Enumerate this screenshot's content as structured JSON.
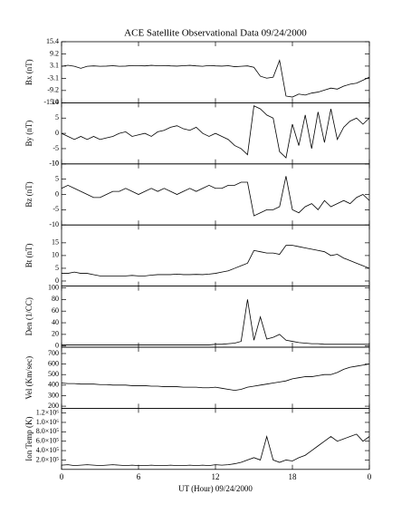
{
  "title": "ACE Satellite Observational Data   09/24/2000",
  "x_axis": {
    "label": "UT (Hour)  09/24/2000",
    "x": [
      0,
      0.5,
      1,
      1.5,
      2,
      2.5,
      3,
      3.5,
      4,
      4.5,
      5,
      5.5,
      6,
      6.5,
      7,
      7.5,
      8,
      8.5,
      9,
      9.5,
      10,
      10.5,
      11,
      11.5,
      12,
      12.5,
      13,
      13.5,
      14,
      14.5,
      15,
      15.5,
      16,
      16.5,
      17,
      17.5,
      18,
      18.5,
      19,
      19.5,
      20,
      20.5,
      21,
      21.5,
      22,
      22.5,
      23,
      23.5,
      24
    ],
    "xlim": [
      0,
      24
    ],
    "xticks": [
      0,
      6,
      12,
      18,
      {
        "value": 24,
        "label": "0"
      }
    ]
  },
  "chart_data": [
    {
      "type": "line",
      "ylabel": "Bx (nT)",
      "color": "#000000",
      "ylim": [
        -15.4,
        15.4
      ],
      "yticks": [
        15.4,
        9.2,
        3.1,
        -3.1,
        -9.2,
        -15.4
      ],
      "values": [
        3,
        3.5,
        3,
        2,
        3,
        3.2,
        3,
        3.1,
        3.3,
        3,
        3.1,
        3.4,
        3.3,
        3.2,
        3.5,
        3.3,
        3.4,
        3.2,
        3.1,
        3.3,
        3.5,
        3.2,
        3,
        3.4,
        3.2,
        3.1,
        3.3,
        2.8,
        3,
        3.2,
        2.5,
        -2,
        -3,
        -2.5,
        6,
        -12,
        -12.5,
        -11,
        -11.5,
        -10.5,
        -10,
        -9,
        -8,
        -8.5,
        -7,
        -6,
        -5.5,
        -4,
        -2.5
      ]
    },
    {
      "type": "line",
      "ylabel": "By (nT)",
      "color": "#000000",
      "ylim": [
        -10,
        10
      ],
      "yticks": [
        -10,
        -5,
        0,
        5,
        10
      ],
      "values": [
        0,
        -1,
        -2,
        -1,
        -2,
        -1,
        -2,
        -1.5,
        -1,
        0,
        0.5,
        -1,
        -0.5,
        0,
        -1,
        0.5,
        1,
        2,
        2.5,
        1.5,
        1,
        2,
        0,
        -1,
        0,
        -1,
        -2,
        -4,
        -5,
        -7,
        9,
        8,
        6,
        5,
        -6,
        -8,
        3,
        -4,
        6,
        -5,
        7,
        -3,
        8,
        -2,
        2,
        4,
        5,
        3,
        5
      ]
    },
    {
      "type": "line",
      "ylabel": "Bz (nT)",
      "color": "#000000",
      "ylim": [
        -10,
        10
      ],
      "yticks": [
        -10,
        -5,
        0,
        5,
        10
      ],
      "values": [
        2,
        3,
        2,
        1,
        0,
        -1,
        -1,
        0,
        1,
        1,
        2,
        1,
        0,
        1,
        2,
        1,
        2,
        1,
        0,
        1,
        2,
        1,
        2,
        3,
        2,
        2,
        3,
        3,
        4,
        4,
        -7,
        -6,
        -5,
        -5,
        -4,
        6,
        -5,
        -6,
        -4,
        -3,
        -5,
        -2,
        -4,
        -3,
        -2,
        -3,
        -1,
        0,
        -2
      ]
    },
    {
      "type": "line",
      "ylabel": "Bt (nT)",
      "color": "#000000",
      "ylim": [
        -2,
        22
      ],
      "yticks": [
        0,
        5,
        10,
        15
      ],
      "values": [
        3,
        3,
        3.5,
        3,
        3,
        2.5,
        2,
        2,
        2,
        2,
        2,
        2.2,
        2,
        2,
        2.3,
        2.5,
        2.5,
        2.5,
        2.7,
        2.5,
        2.5,
        2.6,
        2.5,
        2.7,
        3,
        3.5,
        4,
        5,
        6,
        7,
        12,
        11.5,
        11,
        11,
        10.5,
        14,
        14,
        13.5,
        13,
        12.5,
        12,
        11.5,
        10,
        10.5,
        9,
        8,
        7,
        6,
        5
      ]
    },
    {
      "type": "line",
      "ylabel": "Den (1/CC)",
      "color": "#000000",
      "ylim": [
        -2,
        103
      ],
      "yticks": [
        0,
        20,
        40,
        60,
        80,
        100
      ],
      "values": [
        2,
        2,
        2,
        2,
        2,
        2,
        2,
        2,
        2,
        2,
        2,
        2,
        2,
        2,
        2,
        2,
        2,
        2,
        2,
        2,
        2,
        2,
        2,
        2,
        3,
        3,
        4,
        5,
        8,
        80,
        10,
        50,
        12,
        15,
        20,
        10,
        8,
        6,
        5,
        4,
        4,
        3,
        3,
        3,
        3,
        3,
        3,
        3,
        3
      ]
    },
    {
      "type": "line",
      "ylabel": "Vel (Km/sec)",
      "color": "#000000",
      "ylim": [
        180,
        760
      ],
      "yticks": [
        200,
        300,
        400,
        500,
        600,
        700
      ],
      "values": [
        420,
        415,
        415,
        410,
        410,
        410,
        405,
        405,
        400,
        400,
        400,
        395,
        395,
        395,
        390,
        390,
        385,
        385,
        385,
        380,
        380,
        380,
        375,
        375,
        380,
        370,
        360,
        350,
        360,
        380,
        390,
        400,
        410,
        420,
        430,
        440,
        460,
        470,
        480,
        480,
        490,
        500,
        500,
        520,
        550,
        570,
        580,
        590,
        600
      ]
    },
    {
      "type": "line",
      "ylabel": "Ion Temp (K)",
      "color": "#000000",
      "ylim": [
        0,
        1300000
      ],
      "yticks": [
        {
          "value": 200000,
          "label": "2.0×10⁵"
        },
        {
          "value": 400000,
          "label": "4.0×10⁵"
        },
        {
          "value": 600000,
          "label": "6.0×10⁵"
        },
        {
          "value": 800000,
          "label": "8.0×10⁵"
        },
        {
          "value": 1000000,
          "label": "1.0×10⁶"
        },
        {
          "value": 1200000,
          "label": "1.2×10⁶"
        }
      ],
      "values": [
        90000,
        100000,
        80000,
        90000,
        100000,
        90000,
        80000,
        90000,
        100000,
        90000,
        80000,
        90000,
        80000,
        80000,
        90000,
        80000,
        80000,
        90000,
        80000,
        80000,
        90000,
        80000,
        90000,
        80000,
        100000,
        90000,
        100000,
        120000,
        150000,
        200000,
        250000,
        200000,
        700000,
        200000,
        150000,
        200000,
        180000,
        250000,
        300000,
        400000,
        500000,
        600000,
        700000,
        600000,
        650000,
        700000,
        750000,
        600000,
        700000
      ]
    }
  ]
}
